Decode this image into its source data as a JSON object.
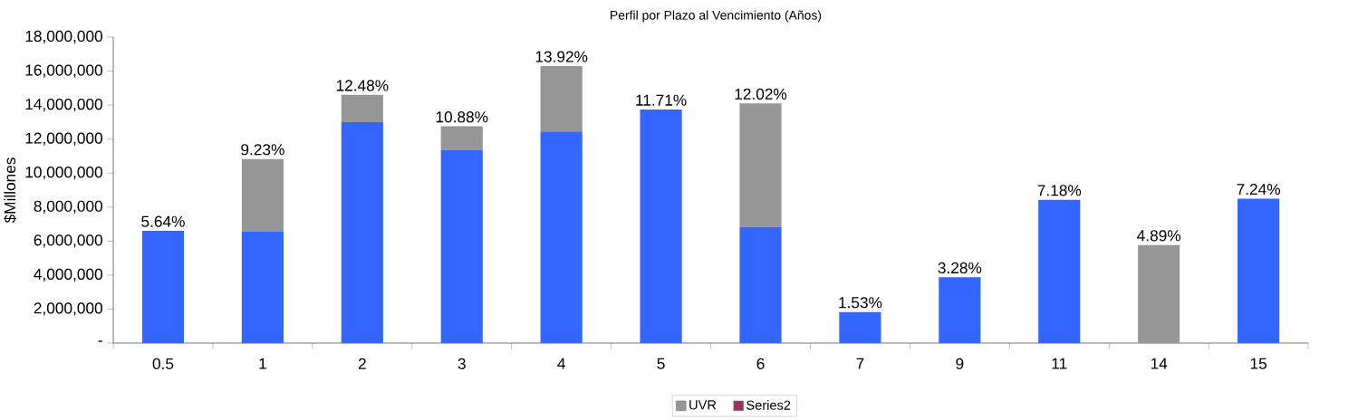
{
  "chart_data": {
    "type": "bar",
    "title": "Perfil por Plazo al Vencimiento (Años)",
    "ylabel": "$Millones",
    "categories": [
      "0.5",
      "1",
      "2",
      "3",
      "4",
      "5",
      "6",
      "7",
      "9",
      "11",
      "14",
      "15"
    ],
    "stacked": true,
    "series": [
      {
        "color": "#3366ff",
        "values": [
          6600000,
          6550000,
          13000000,
          11370000,
          12450000,
          13740000,
          6830000,
          1830000,
          3870000,
          8430000,
          null,
          8500000
        ]
      },
      {
        "name": "UVR",
        "color": "#969696",
        "values": [
          null,
          4280000,
          1600000,
          1380000,
          3850000,
          null,
          7270000,
          null,
          null,
          null,
          5770000,
          null
        ]
      },
      {
        "name": "Series2",
        "color": "#993366",
        "values": [
          null,
          null,
          null,
          null,
          null,
          null,
          null,
          null,
          null,
          null,
          null,
          null
        ]
      }
    ],
    "annotations": [
      {
        "text": "5.64%",
        "x": "0.5",
        "y": 6600000
      },
      {
        "text": "9.23%",
        "x": "1",
        "y": 10830000
      },
      {
        "text": "12.48%",
        "x": "2",
        "y": 14600000
      },
      {
        "text": "10.88%",
        "x": "3",
        "y": 12750000
      },
      {
        "text": "13.92%",
        "x": "4",
        "y": 16300000
      },
      {
        "text": "11.71%",
        "x": "5",
        "y": 13740000
      },
      {
        "text": "12.02%",
        "x": "6",
        "y": 14100000
      },
      {
        "text": "1.53%",
        "x": "7",
        "y": 1830000
      },
      {
        "text": "3.28%",
        "x": "9",
        "y": 3870000
      },
      {
        "text": "7.18%",
        "x": "11",
        "y": 8430000
      },
      {
        "text": "4.89%",
        "x": "14",
        "y": 5770000
      },
      {
        "text": "7.24%",
        "x": "15",
        "y": 8500000
      }
    ],
    "ylim": [
      0,
      18000000
    ],
    "yticks": [
      {
        "value": 0,
        "label": "-"
      },
      {
        "value": 2000000,
        "label": "2,000,000"
      },
      {
        "value": 4000000,
        "label": "4,000,000"
      },
      {
        "value": 6000000,
        "label": "6,000,000"
      },
      {
        "value": 8000000,
        "label": "8,000,000"
      },
      {
        "value": 10000000,
        "label": "10,000,000"
      },
      {
        "value": 12000000,
        "label": "12,000,000"
      },
      {
        "value": 14000000,
        "label": "14,000,000"
      },
      {
        "value": 16000000,
        "label": "16,000,000"
      },
      {
        "value": 18000000,
        "label": "18,000,000"
      }
    ],
    "legend": "bottom",
    "grid": false
  }
}
